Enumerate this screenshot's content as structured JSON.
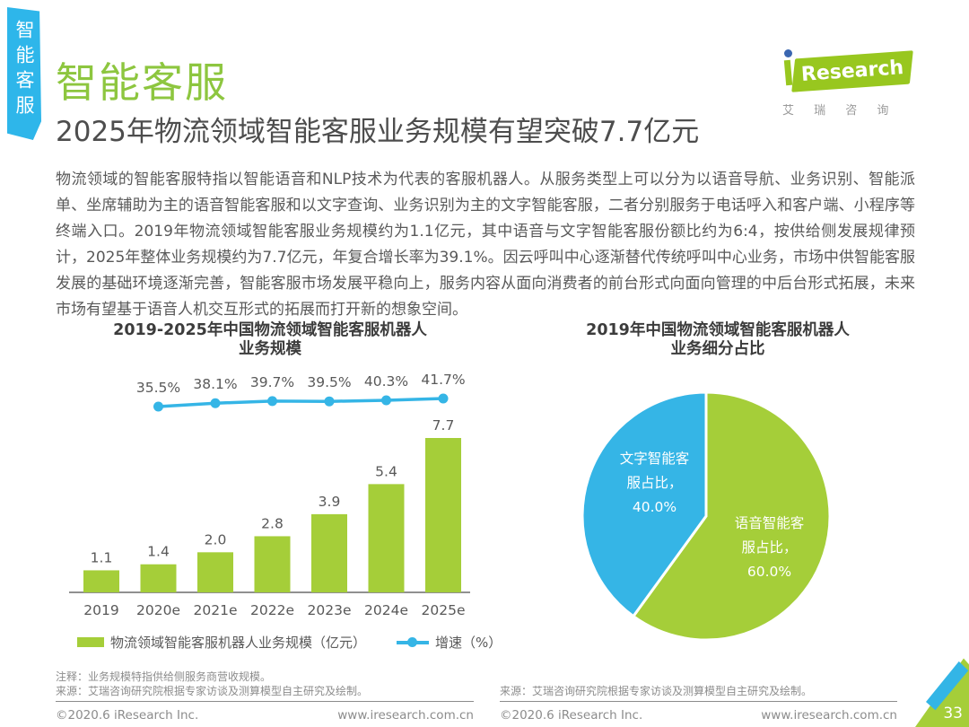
{
  "page": {
    "side_tab": "智能客服",
    "title": "智能客服",
    "subtitle": "2025年物流领域智能客服业务规模有望突破7.7亿元",
    "body": "物流领域的智能客服特指以智能语音和NLP技术为代表的客服机器人。从服务类型上可以分为以语音导航、业务识别、智能派单、坐席辅助为主的语音智能客服和以文字查询、业务识别为主的文字智能客服，二者分别服务于电话呼入和客户端、小程序等终端入口。2019年物流领域智能客服业务规模约为1.1亿元，其中语音与文字智能客服份额比约为6:4，按供给侧发展规律预计，2025年整体业务规模约为7.7亿元，年复合增长率为39.1%。因云呼叫中心逐渐替代传统呼叫中心业务，市场中供智能客服发展的基础环境逐渐完善，智能客服市场发展平稳向上，服务内容从面向消费者的前台形式向面向管理的中后台形式拓展，未来市场有望基于语音人机交互形式的拓展而打开新的想象空间。",
    "page_number": "33"
  },
  "logo": {
    "word": "Research",
    "cn": "艾 瑞 咨 询"
  },
  "footer_left": {
    "note": "注释：业务规模特指供给侧服务商营收规模。",
    "source": "来源：艾瑞咨询研究院根据专家访谈及测算模型自主研究及绘制。",
    "copyright": "©2020.6 iResearch Inc.",
    "url": "www.iresearch.com.cn"
  },
  "footer_right": {
    "source": "来源：艾瑞咨询研究院根据专家访谈及测算模型自主研究及绘制。",
    "copyright": "©2020.6 iResearch Inc.",
    "url": "www.iresearch.com.cn"
  },
  "colors": {
    "accent_green": "#8dc63f",
    "chart_green": "#a5ce39",
    "accent_blue": "#35b5e6",
    "tab_blue": "#2eb6ea",
    "logo_green": "#98c71f",
    "logo_dot_blue": "#3a66b0"
  },
  "chart_data": [
    {
      "type": "bar",
      "title": "2019-2025年中国物流领域智能客服机器人业务规模",
      "title_lines": [
        "2019-2025年中国物流领域智能客服机器人",
        "业务规模"
      ],
      "categories": [
        "2019",
        "2020e",
        "2021e",
        "2022e",
        "2023e",
        "2024e",
        "2025e"
      ],
      "series": [
        {
          "name": "物流领域智能客服机器人业务规模（亿元）",
          "type": "bar",
          "color": "#a5ce39",
          "values": [
            1.1,
            1.4,
            2.0,
            2.8,
            3.9,
            5.4,
            7.7
          ]
        },
        {
          "name": "增速（%）",
          "type": "line",
          "color": "#35b5e6",
          "values": [
            null,
            35.5,
            38.1,
            39.7,
            39.5,
            40.3,
            41.7
          ]
        }
      ],
      "ylim": [
        0,
        8.5
      ],
      "grid": false,
      "legend_position": "bottom"
    },
    {
      "type": "pie",
      "title": "2019年中国物流领域智能客服机器人业务细分占比",
      "title_lines": [
        "2019年中国物流领域智能客服机器人",
        "业务细分占比"
      ],
      "slices": [
        {
          "label": "语音智能客服占比",
          "value": 60.0,
          "color": "#a5ce39",
          "label_lines": [
            "语音智能客",
            "服占比，",
            "60.0%"
          ]
        },
        {
          "label": "文字智能客服占比",
          "value": 40.0,
          "color": "#35b5e6",
          "label_lines": [
            "文字智能客",
            "服占比，",
            "40.0%"
          ]
        }
      ]
    }
  ]
}
